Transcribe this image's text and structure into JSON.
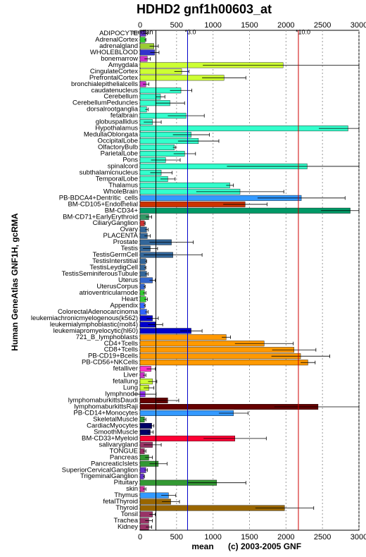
{
  "chart_data": {
    "type": "bar",
    "orientation": "horizontal",
    "title": "HDHD2 gnf1h00603_at",
    "y_label": "Human GeneAtlas GNF1H, gcRMA",
    "x_label": "mean",
    "copyright": "(c) 2003-2005 GNF",
    "xlim": [
      0,
      3000
    ],
    "xticks": [
      0,
      500,
      1000,
      1500,
      2000,
      2500,
      3000
    ],
    "grid": true,
    "reference_lines": [
      {
        "label": "median",
        "value": 217,
        "color": "#000000"
      },
      {
        "label": "*3.0",
        "value": 651,
        "color": "#0000cc"
      },
      {
        "label": "*10.0",
        "value": 2170,
        "color": "#cc0000"
      }
    ],
    "categories": [
      "ADIPOCYTE",
      "AdrenalCortex",
      "adrenalgland",
      "WHOLEBLOOD",
      "bonemarrow",
      "Amygdala",
      "CingulateCortex",
      "PrefrontalCortex",
      "bronchialepithelialcells",
      "caudatenucleus",
      "Cerebellum",
      "CerebellumPeduncles",
      "dorsalrootganglia",
      "fetalbrain",
      "globuspallidus",
      "Hypothalamus",
      "MedullaOblongata",
      "OccipitalLobe",
      "OlfactoryBulb",
      "ParietalLobe",
      "Pons",
      "spinalcord",
      "subthalamicnucleus",
      "TemporalLobe",
      "Thalamus",
      "WholeBrain",
      "PB-BDCA4+Dentritic_cells",
      "BM-CD105+Endothelial",
      "BM-CD34+",
      "BM-CD71+EarlyErythroid",
      "CiliaryGanglion",
      "Ovary",
      "PLACENTA",
      "Prostate",
      "Testis",
      "TestisGermCell",
      "TestisInterstitial",
      "TestisLeydigCell",
      "TestisSeminiferousTubule",
      "Uterus",
      "UterusCorpus",
      "atrioventricularnode",
      "Heart",
      "Appendix",
      "ColorectalAdenocarcinoma",
      "leukemiachronicmyelogenous(k562)",
      "leukemialymphoblastic(molt4)",
      "leukemiapromyelocytic(hl60)",
      "721_B_lymphoblasts",
      "CD4+Tcells",
      "CD8+Tcells",
      "PB-CD19+Bcells",
      "PB-CD56+NKCells",
      "fetalliver",
      "Liver",
      "fetallung",
      "Lung",
      "lymphnode",
      "lymphomaburkittsDaudi",
      "lymphomaburkittsRaji",
      "PB-CD14+Monocytes",
      "SkeletalMuscle",
      "CardiacMyocytes",
      "SmoothMuscle",
      "BM-CD33+Myeloid",
      "salivarygland",
      "TONGUE",
      "Pancreas",
      "PancreaticIslets",
      "SuperiorCervicalGanglion",
      "TrigeminalGanglion",
      "Pituitary",
      "skin",
      "Thymus",
      "fetalThyroid",
      "Thyroid",
      "Tonsil",
      "Trachea",
      "Kidney"
    ],
    "values": [
      80,
      70,
      190,
      200,
      100,
      1960,
      570,
      1150,
      80,
      560,
      280,
      410,
      90,
      630,
      170,
      2850,
      700,
      800,
      470,
      610,
      350,
      2290,
      290,
      380,
      1230,
      1370,
      2210,
      1440,
      2880,
      120,
      60,
      90,
      100,
      430,
      140,
      450,
      80,
      70,
      90,
      170,
      60,
      60,
      80,
      60,
      90,
      170,
      210,
      700,
      1180,
      1700,
      2110,
      2200,
      2300,
      150,
      60,
      170,
      120,
      70,
      380,
      2440,
      1280,
      60,
      160,
      140,
      1300,
      170,
      60,
      120,
      250,
      80,
      50,
      1050,
      60,
      390,
      420,
      1980,
      170,
      120,
      120
    ],
    "errors": [
      20,
      10,
      60,
      60,
      40,
      1100,
      100,
      300,
      40,
      150,
      60,
      200,
      20,
      250,
      120,
      400,
      250,
      280,
      20,
      150,
      200,
      1100,
      150,
      100,
      50,
      600,
      600,
      300,
      400,
      40,
      10,
      20,
      40,
      300,
      100,
      400,
      10,
      10,
      20,
      40,
      10,
      20,
      20,
      10,
      20,
      80,
      100,
      150,
      60,
      400,
      300,
      400,
      100,
      60,
      20,
      60,
      70,
      150,
      150,
      600,
      200,
      20,
      30,
      40,
      430,
      120,
      20,
      50,
      120,
      20,
      10,
      400,
      20,
      100,
      120,
      400,
      40,
      50,
      40
    ],
    "colors": [
      "#6633cc",
      "#33cc33",
      "#99cc33",
      "#3333cc",
      "#cc33cc",
      "#ccff33",
      "#ccff33",
      "#ccff33",
      "#cc33cc",
      "#33ffcc",
      "#33ffcc",
      "#33ffcc",
      "#33ffcc",
      "#33ffcc",
      "#33ffcc",
      "#33ffcc",
      "#33ffcc",
      "#33ffcc",
      "#33ffcc",
      "#33ffcc",
      "#33ffcc",
      "#33ffcc",
      "#33ffcc",
      "#33ffcc",
      "#33ffcc",
      "#33ffcc",
      "#3399ff",
      "#cc3300",
      "#009966",
      "#339966",
      "#cc3333",
      "#336699",
      "#336699",
      "#336699",
      "#336699",
      "#336699",
      "#336699",
      "#336699",
      "#336699",
      "#3366cc",
      "#3366cc",
      "#33cc33",
      "#33cc33",
      "#3366ff",
      "#3366ff",
      "#0000cc",
      "#0000cc",
      "#0000cc",
      "#ff9900",
      "#ff9900",
      "#ff9900",
      "#ff9900",
      "#ff9900",
      "#ff33cc",
      "#cc33cc",
      "#ccff33",
      "#ccff33",
      "#9933ff",
      "#660000",
      "#660000",
      "#3399ff",
      "#339933",
      "#000066",
      "#000066",
      "#ff0033",
      "#993366",
      "#993366",
      "#339933",
      "#339933",
      "#6633cc",
      "#6633cc",
      "#339933",
      "#cc3399",
      "#3399ff",
      "#996600",
      "#996600",
      "#993366",
      "#993366",
      "#993366"
    ]
  }
}
